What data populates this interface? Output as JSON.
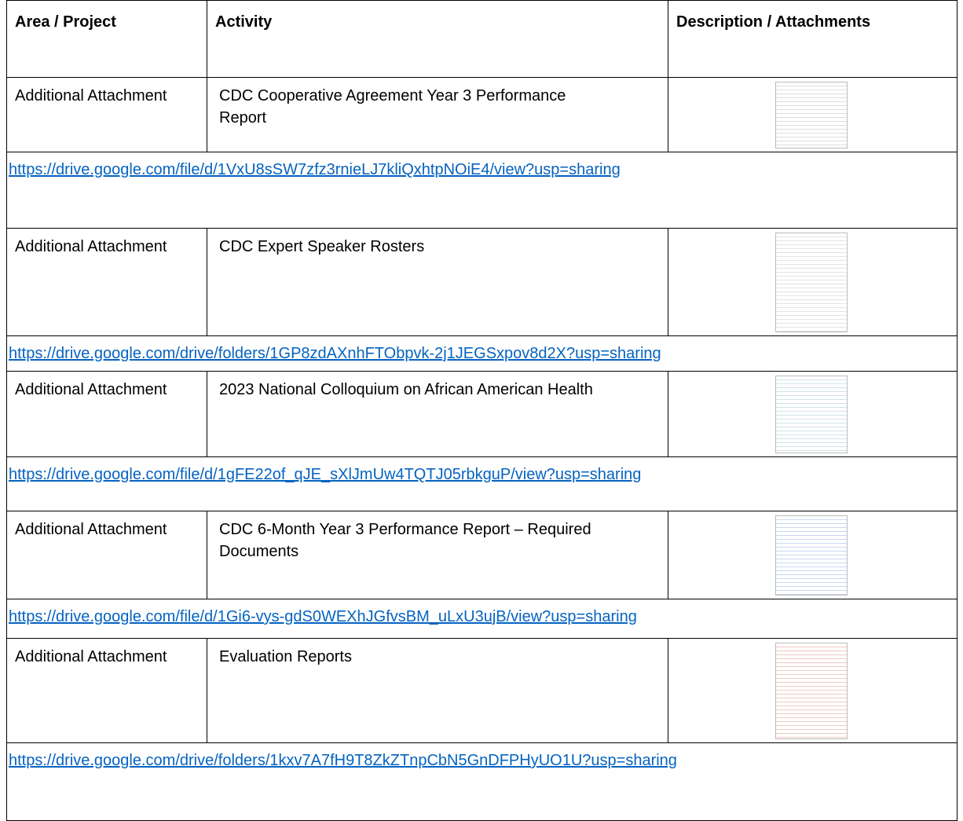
{
  "table": {
    "header": [
      "Area / Project",
      "Activity",
      "Description / Attachments"
    ],
    "rows": [
      {
        "area": "Additional Attachment",
        "activity": "CDC Cooperative Agreement Year 3 Performance Report",
        "link": "https://drive.google.com/file/d/1VxU8sSW7zfz3rnieLJ7kliQxhtpNOiE4/view?usp=sharing"
      },
      {
        "area": "Additional Attachment",
        "activity": "CDC Expert Speaker Rosters",
        "link": "https://drive.google.com/drive/folders/1GP8zdAXnhFTObpvk-2j1JEGSxpov8d2X?usp=sharing"
      },
      {
        "area": "Additional Attachment",
        "activity": "2023 National Colloquium on African American Health",
        "link": "https://drive.google.com/file/d/1gFE22of_qJE_sXlJmUw4TQTJ05rbkguP/view?usp=sharing"
      },
      {
        "area": "Additional Attachment",
        "activity": "CDC 6-Month Year 3 Performance Report – Required Documents",
        "link": "https://drive.google.com/file/d/1Gi6-vys-gdS0WEXhJGfvsBM_uLxU3ujB/view?usp=sharing"
      },
      {
        "area": "Additional Attachment",
        "activity": "Evaluation Reports",
        "link": "https://drive.google.com/drive/folders/1kxv7A7fH9T8ZkZTnpCbN5GnDFPHyUO1U?usp=sharing"
      }
    ]
  }
}
